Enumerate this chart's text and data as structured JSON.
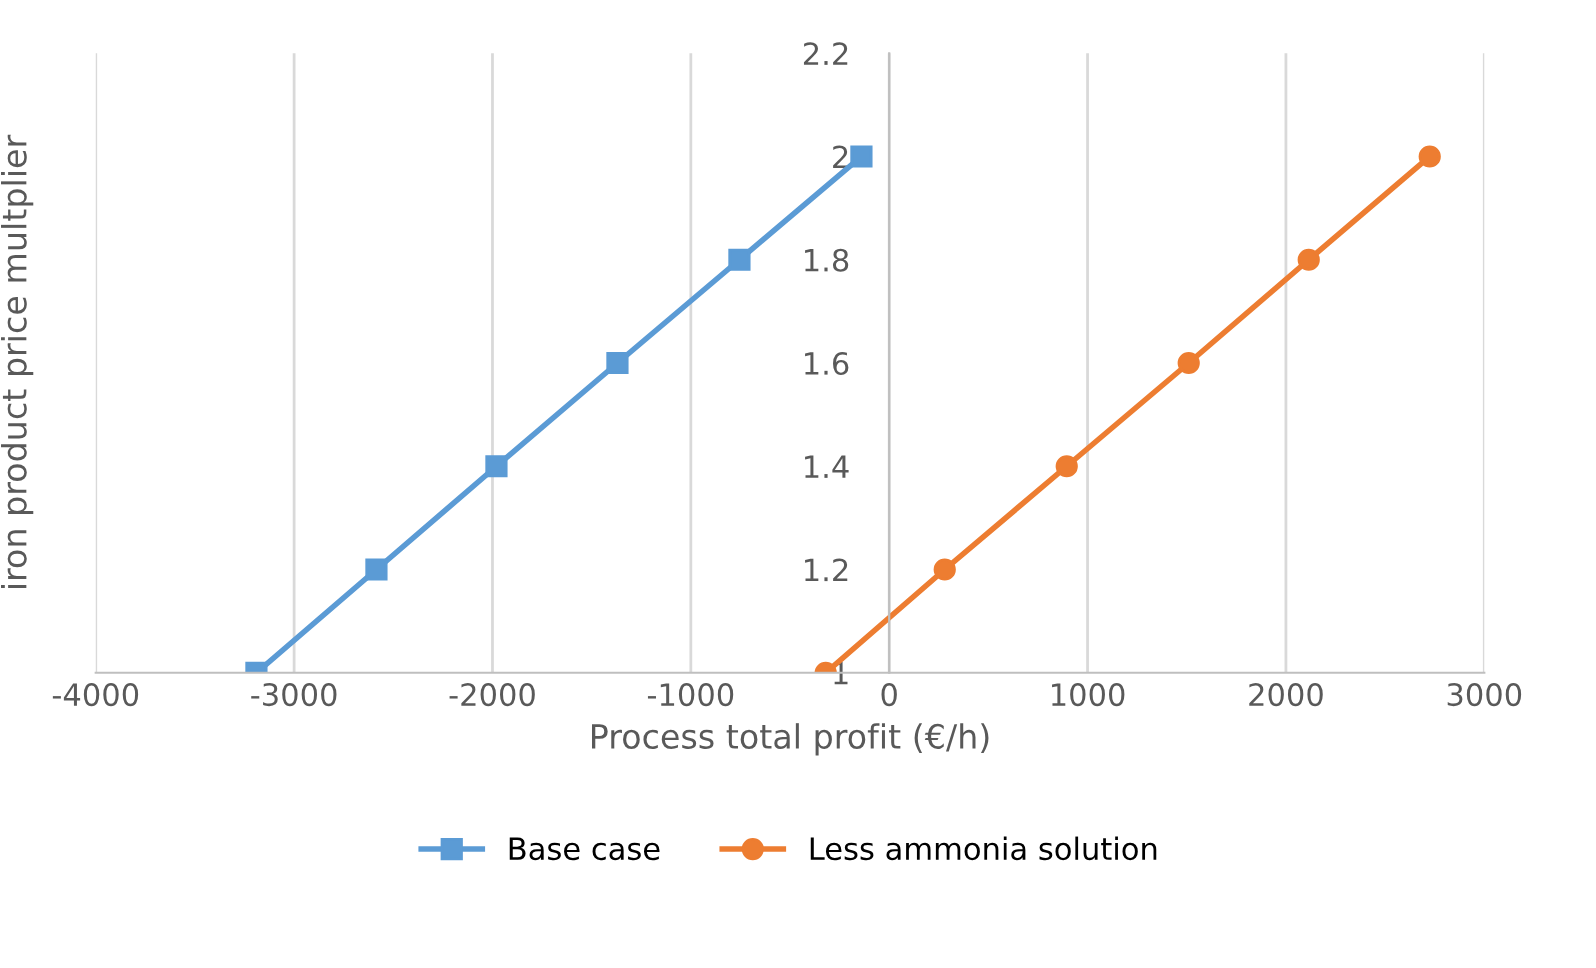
{
  "chart_data": {
    "type": "line",
    "xlabel": "Process total profit (€/h)",
    "ylabel": "iron product price multplier",
    "xlim": [
      -4000,
      3000
    ],
    "xticks": [
      -4000,
      -3000,
      -2000,
      -1000,
      0,
      1000,
      2000,
      3000
    ],
    "ylim": [
      1,
      2.2
    ],
    "yticks": [
      1,
      1.2,
      1.4,
      1.6,
      1.8,
      2,
      2.2
    ],
    "grid": "x",
    "legend": "bottom",
    "series": [
      {
        "name": "Base case",
        "color": "#5b9bd5",
        "marker": "square",
        "x": [
          -3190,
          -2585,
          -1980,
          -1370,
          -755,
          -140
        ],
        "values": [
          1,
          1.2,
          1.4,
          1.6,
          1.8,
          2
        ]
      },
      {
        "name": "Less ammonia solution",
        "color": "#ed7d31",
        "marker": "circle",
        "x": [
          -320,
          280,
          895,
          1510,
          2115,
          2725
        ],
        "values": [
          1,
          1.2,
          1.4,
          1.6,
          1.8,
          2
        ]
      }
    ]
  }
}
